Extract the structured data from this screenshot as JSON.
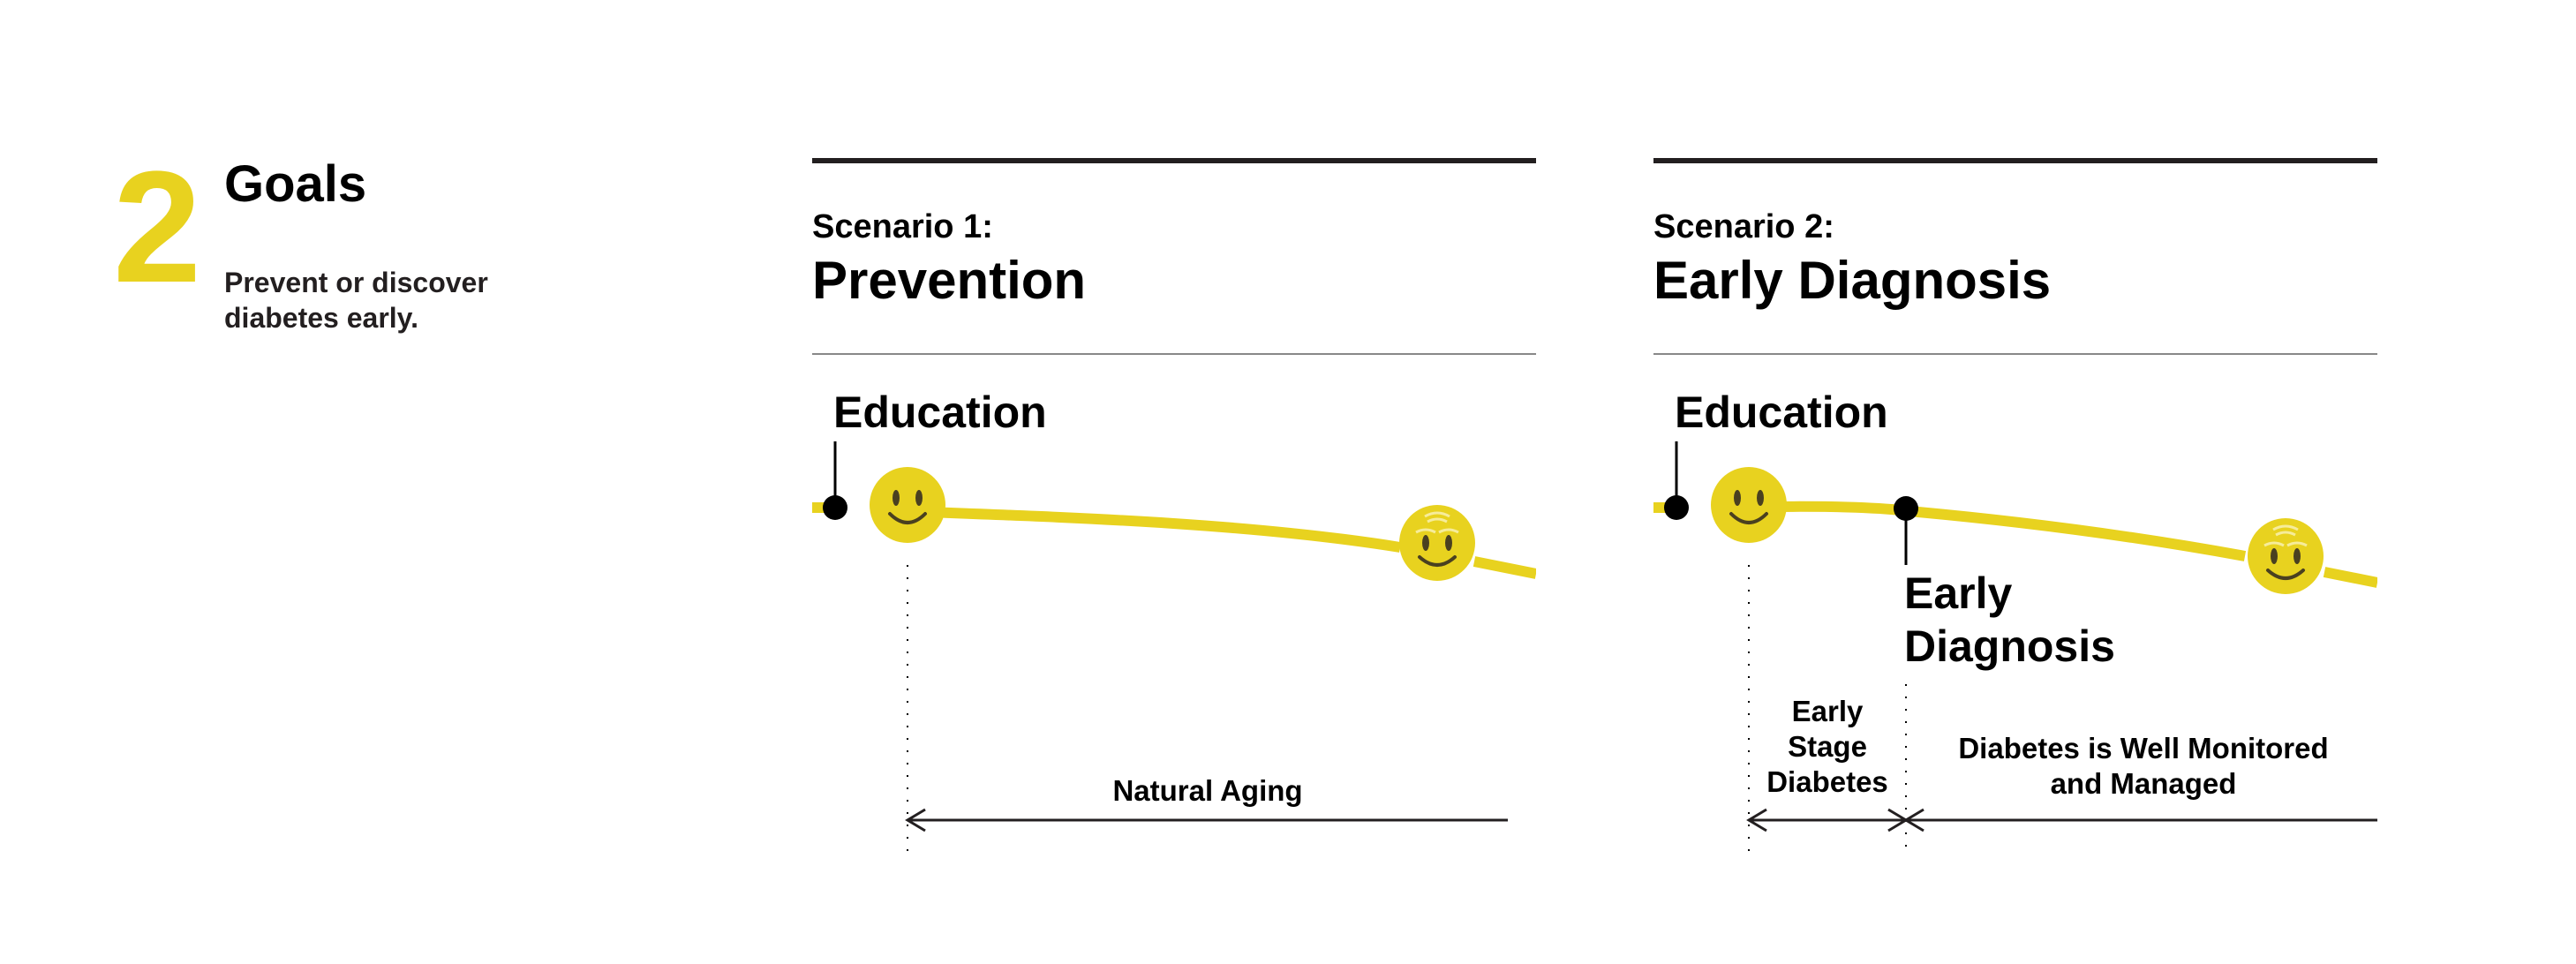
{
  "goal": {
    "number": "2",
    "title": "Goals",
    "description": "Prevent or discover diabetes early."
  },
  "scenarios": [
    {
      "label": "Scenario 1:",
      "title": "Prevention",
      "education_label": "Education",
      "phases": [
        "Natural Aging"
      ]
    },
    {
      "label": "Scenario 2:",
      "title": "Early Diagnosis",
      "education_label": "Education",
      "early_diagnosis_label": "Early Diagnosis",
      "phases": [
        "Early Stage Diabetes",
        "Diabetes is Well Monitored and Managed"
      ]
    }
  ],
  "icons": [
    "smiley-face-icon",
    "aging-smiley-face-icon"
  ],
  "colors": {
    "accent": "#E8D21F",
    "rule": "#231f20",
    "text": "#000000"
  }
}
